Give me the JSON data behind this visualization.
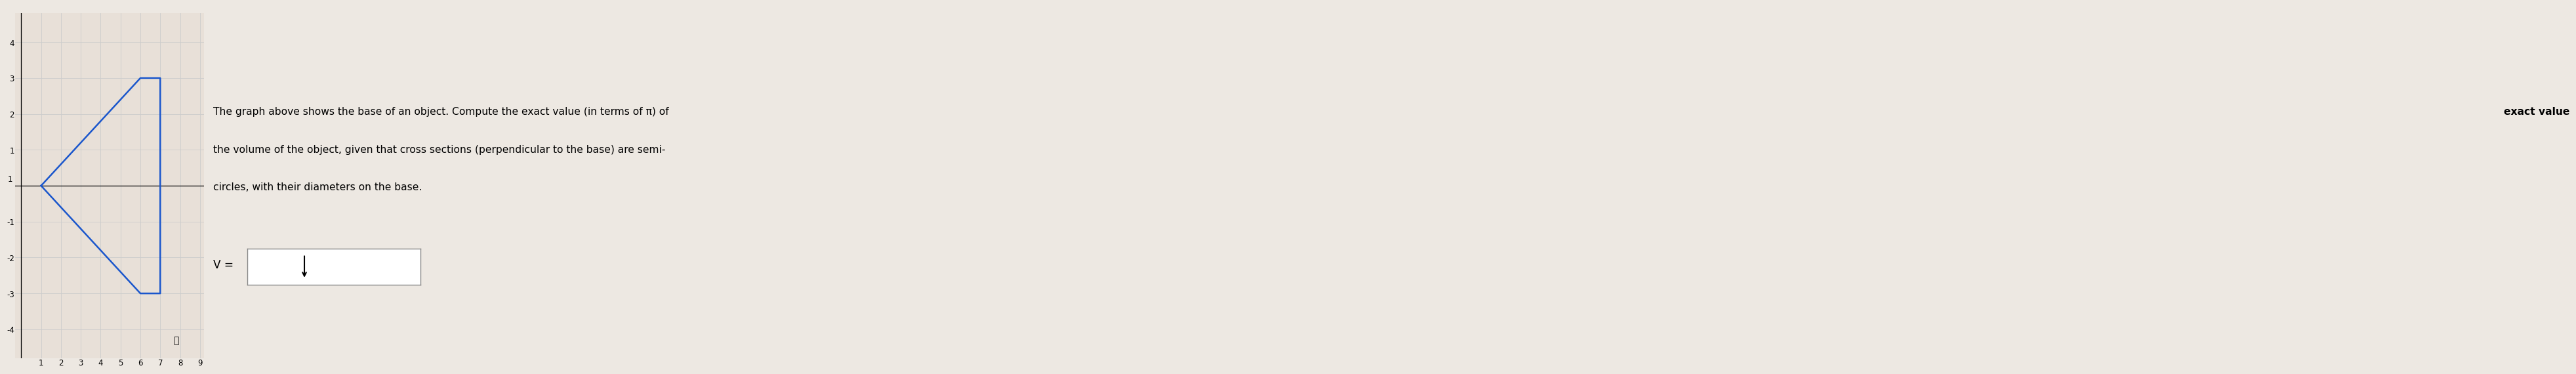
{
  "shape_vertices_x": [
    1,
    6,
    7,
    7,
    6,
    1
  ],
  "shape_vertices_y": [
    0,
    3,
    3,
    -3,
    -3,
    0
  ],
  "shape_color": "#1a56cc",
  "shape_linewidth": 1.8,
  "grid_color": "#cccccc",
  "graph_bg_color": "#e8e0d8",
  "page_bg_color": "#ede8e2",
  "xlim": [
    -0.3,
    9.2
  ],
  "ylim": [
    -4.8,
    4.8
  ],
  "xticks": [
    1,
    2,
    3,
    4,
    5,
    6,
    7,
    8,
    9
  ],
  "yticks": [
    -4,
    -3,
    -2,
    -1,
    1,
    2,
    3,
    4
  ],
  "font_size_ticks": 8.5,
  "font_size_text": 11.2,
  "line1_normal": "The graph above shows the base of an object. Compute the ",
  "line1_bold": "exact value",
  "line1_end": " (in terms of π) of",
  "line2": "the volume of the object, given that cross sections (perpendicular to the base) are semi-",
  "line3": "circles, with their diameters on the base.",
  "text_v": "V ="
}
